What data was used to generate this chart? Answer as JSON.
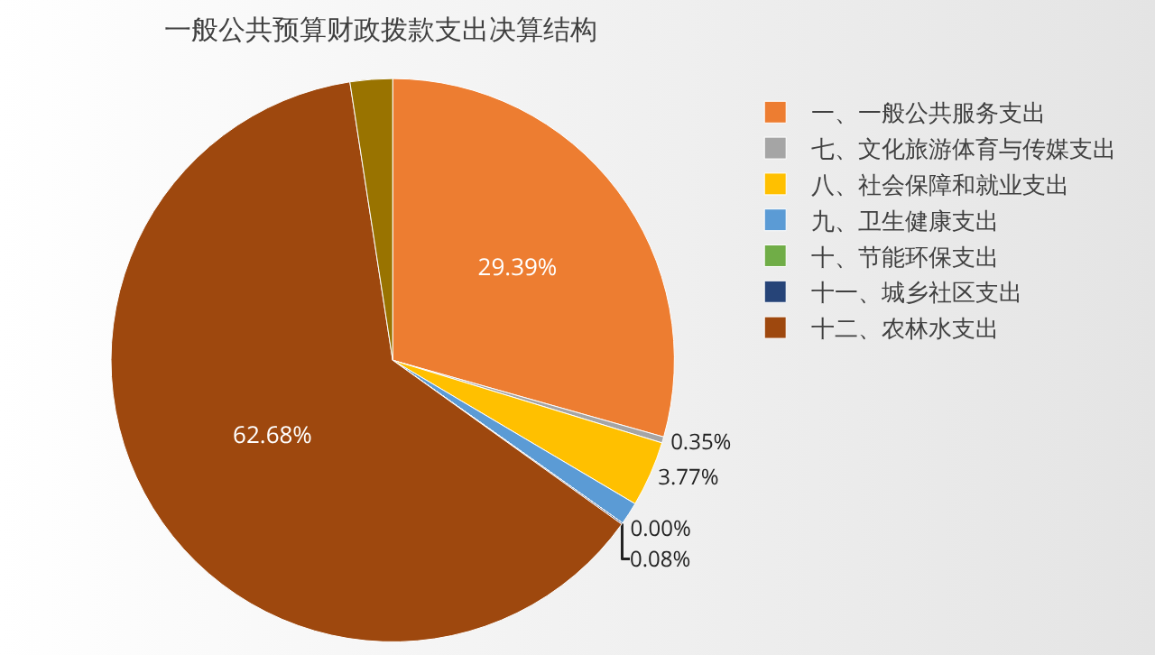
{
  "chart_data": {
    "type": "pie",
    "title": "一般公共预算财政拨款支出决算结构",
    "categories": [
      "一、一般公共服务支出",
      "七、文化旅游体育与传媒支出",
      "八、社会保障和就业支出",
      "九、卫生健康支出",
      "十、节能环保支出",
      "十一、城乡社区支出",
      "十二、农林水支出",
      null
    ],
    "values": [
      29.39,
      0.35,
      3.77,
      1.3,
      0.0,
      0.08,
      62.68,
      2.43
    ],
    "colors": [
      "#ed7d31",
      "#a5a5a5",
      "#ffc000",
      "#5b9bd5",
      "#70ad47",
      "#264478",
      "#9e480e",
      "#997300"
    ],
    "value_labels": [
      "29.39%",
      "0.35%",
      "3.77%",
      null,
      "0.00%",
      "0.08%",
      "62.68%",
      null
    ],
    "legend": "right"
  }
}
